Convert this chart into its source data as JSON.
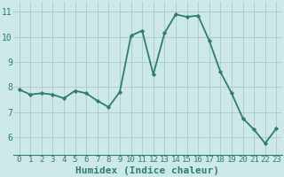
{
  "x": [
    0,
    1,
    2,
    3,
    4,
    5,
    6,
    7,
    8,
    9,
    10,
    11,
    12,
    13,
    14,
    15,
    16,
    17,
    18,
    19,
    20,
    21,
    22,
    23
  ],
  "y": [
    7.9,
    7.7,
    7.75,
    7.7,
    7.55,
    7.85,
    7.75,
    7.45,
    7.2,
    7.8,
    10.05,
    10.25,
    8.5,
    10.15,
    10.9,
    10.8,
    10.85,
    9.85,
    8.6,
    7.75,
    6.75,
    6.3,
    5.75,
    6.35
  ],
  "line_color": "#2e7d6e",
  "marker": "D",
  "marker_size": 2.2,
  "bg_color": "#cce8e8",
  "grid_color": "#aec8c8",
  "xlabel": "Humidex (Indice chaleur)",
  "xlim": [
    -0.5,
    23.5
  ],
  "ylim": [
    5.3,
    11.4
  ],
  "yticks": [
    6,
    7,
    8,
    9,
    10,
    11
  ],
  "xticks": [
    0,
    1,
    2,
    3,
    4,
    5,
    6,
    7,
    8,
    9,
    10,
    11,
    12,
    13,
    14,
    15,
    16,
    17,
    18,
    19,
    20,
    21,
    22,
    23
  ],
  "xtick_labels": [
    "0",
    "1",
    "2",
    "3",
    "4",
    "5",
    "6",
    "7",
    "8",
    "9",
    "10",
    "11",
    "12",
    "13",
    "14",
    "15",
    "16",
    "17",
    "18",
    "19",
    "20",
    "21",
    "22",
    "23"
  ],
  "tick_color": "#2e7d6e",
  "xlabel_fontsize": 8,
  "tick_fontsize": 6.5,
  "linewidth": 1.3
}
